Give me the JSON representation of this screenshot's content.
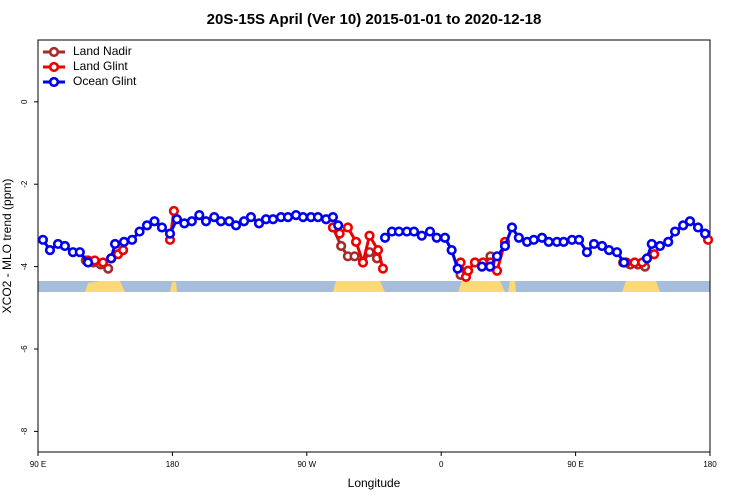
{
  "chart_data": {
    "type": "line",
    "title": "20S-15S April (Ver 10)   2015-01-01 to 2020-12-18",
    "x_label": "Longitude",
    "y_label": "XCO2 - MLO trend (ppm)",
    "xlim": [
      90,
      540
    ],
    "ylim": [
      -8.5,
      1.5
    ],
    "xticks": [
      {
        "value": 90,
        "label": "90 E"
      },
      180,
      {
        "value": 270,
        "label": "90 W"
      },
      {
        "value": 360,
        "label": "0"
      },
      {
        "value": 450,
        "label": "90 E"
      },
      {
        "value": 540,
        "label": "180"
      }
    ],
    "yticks": [
      0,
      -2,
      -4,
      -6,
      -8
    ],
    "legend": "top-left",
    "series": [
      {
        "name": "Land Nadir",
        "color": "#a52a2a",
        "x": [
          122,
          127,
          132,
          137,
          200,
          287.5,
          293,
          297.5,
          302,
          307.6,
          312,
          317,
          340,
          373,
          378,
          382.6,
          388,
          393,
          440,
          481.8,
          486.6,
          491.8,
          496.5
        ],
        "values": [
          -3.85,
          -3.9,
          -3.95,
          -4.05,
          null,
          -3.05,
          -3.5,
          -3.75,
          -3.75,
          -3.9,
          -3.65,
          -3.8,
          null,
          -4.2,
          -4.1,
          -3.9,
          -3.9,
          -3.75,
          null,
          -3.9,
          -3.95,
          -3.95,
          -4.0
        ]
      },
      {
        "name": "Land Glint",
        "color": "#ee0000",
        "x": [
          123.5,
          128,
          133.5,
          139,
          143.6,
          147,
          160,
          178.4,
          181,
          230,
          287.5,
          292,
          297.5,
          303,
          307.6,
          312,
          317.7,
          321,
          340,
          373,
          376.6,
          378,
          382.6,
          388,
          393,
          397.4,
          402.7,
          440,
          484,
          489.5,
          494.6,
          502.6,
          520,
          538.7
        ],
        "values": [
          -3.85,
          -3.85,
          -3.9,
          -3.8,
          -3.7,
          -3.6,
          null,
          -3.35,
          -2.65,
          null,
          -3.05,
          -3.2,
          -3.05,
          -3.4,
          -3.9,
          -3.25,
          -3.6,
          -4.05,
          null,
          -3.9,
          -4.25,
          -4.1,
          -3.9,
          -3.9,
          -3.9,
          -4.1,
          -3.4,
          null,
          -3.9,
          -3.9,
          -3.9,
          -3.7,
          null,
          -3.35
        ]
      },
      {
        "name": "Ocean Glint",
        "color": "#0000ee",
        "x": [
          93.3,
          98,
          103.4,
          108,
          113.4,
          118,
          123.5,
          130,
          139,
          141.6,
          147.6,
          153,
          158,
          163,
          168,
          173,
          178.4,
          183,
          188,
          193,
          198,
          202.5,
          208,
          212.5,
          218,
          222.6,
          228,
          232.6,
          238,
          242.7,
          247.4,
          252.7,
          257.4,
          262.8,
          267.5,
          272.8,
          277.5,
          282.9,
          287.5,
          291,
          305,
          322.4,
          327,
          331.7,
          337,
          341.8,
          347,
          352.5,
          357,
          362.5,
          367,
          371,
          380,
          387.3,
          392.7,
          397.4,
          402.7,
          407.4,
          412,
          417.5,
          422,
          427.5,
          432,
          437.5,
          442,
          447.6,
          452.3,
          457.6,
          462.3,
          467.7,
          472.4,
          477.7,
          482.4,
          490,
          497.8,
          501,
          506.5,
          512,
          516.6,
          522,
          526.6,
          532,
          536.7
        ],
        "values": [
          -3.35,
          -3.6,
          -3.45,
          -3.5,
          -3.65,
          -3.65,
          -3.9,
          null,
          -3.8,
          -3.45,
          -3.4,
          -3.35,
          -3.15,
          -3.0,
          -2.9,
          -3.05,
          -3.2,
          -2.85,
          -2.95,
          -2.9,
          -2.75,
          -2.9,
          -2.8,
          -2.9,
          -2.9,
          -3.0,
          -2.9,
          -2.8,
          -2.95,
          -2.85,
          -2.85,
          -2.8,
          -2.8,
          -2.75,
          -2.8,
          -2.8,
          -2.8,
          -2.85,
          -2.8,
          -3.0,
          null,
          -3.3,
          -3.15,
          -3.15,
          -3.15,
          -3.15,
          -3.25,
          -3.15,
          -3.3,
          -3.3,
          -3.6,
          -4.05,
          null,
          -4.0,
          -4.0,
          -3.75,
          -3.5,
          -3.05,
          -3.3,
          -3.4,
          -3.35,
          -3.3,
          -3.4,
          -3.4,
          -3.4,
          -3.35,
          -3.35,
          -3.65,
          -3.45,
          -3.5,
          -3.6,
          -3.65,
          -3.9,
          null,
          -3.8,
          -3.45,
          -3.5,
          -3.4,
          -3.15,
          -3.0,
          -2.9,
          -3.05,
          -3.2
        ]
      }
    ]
  }
}
